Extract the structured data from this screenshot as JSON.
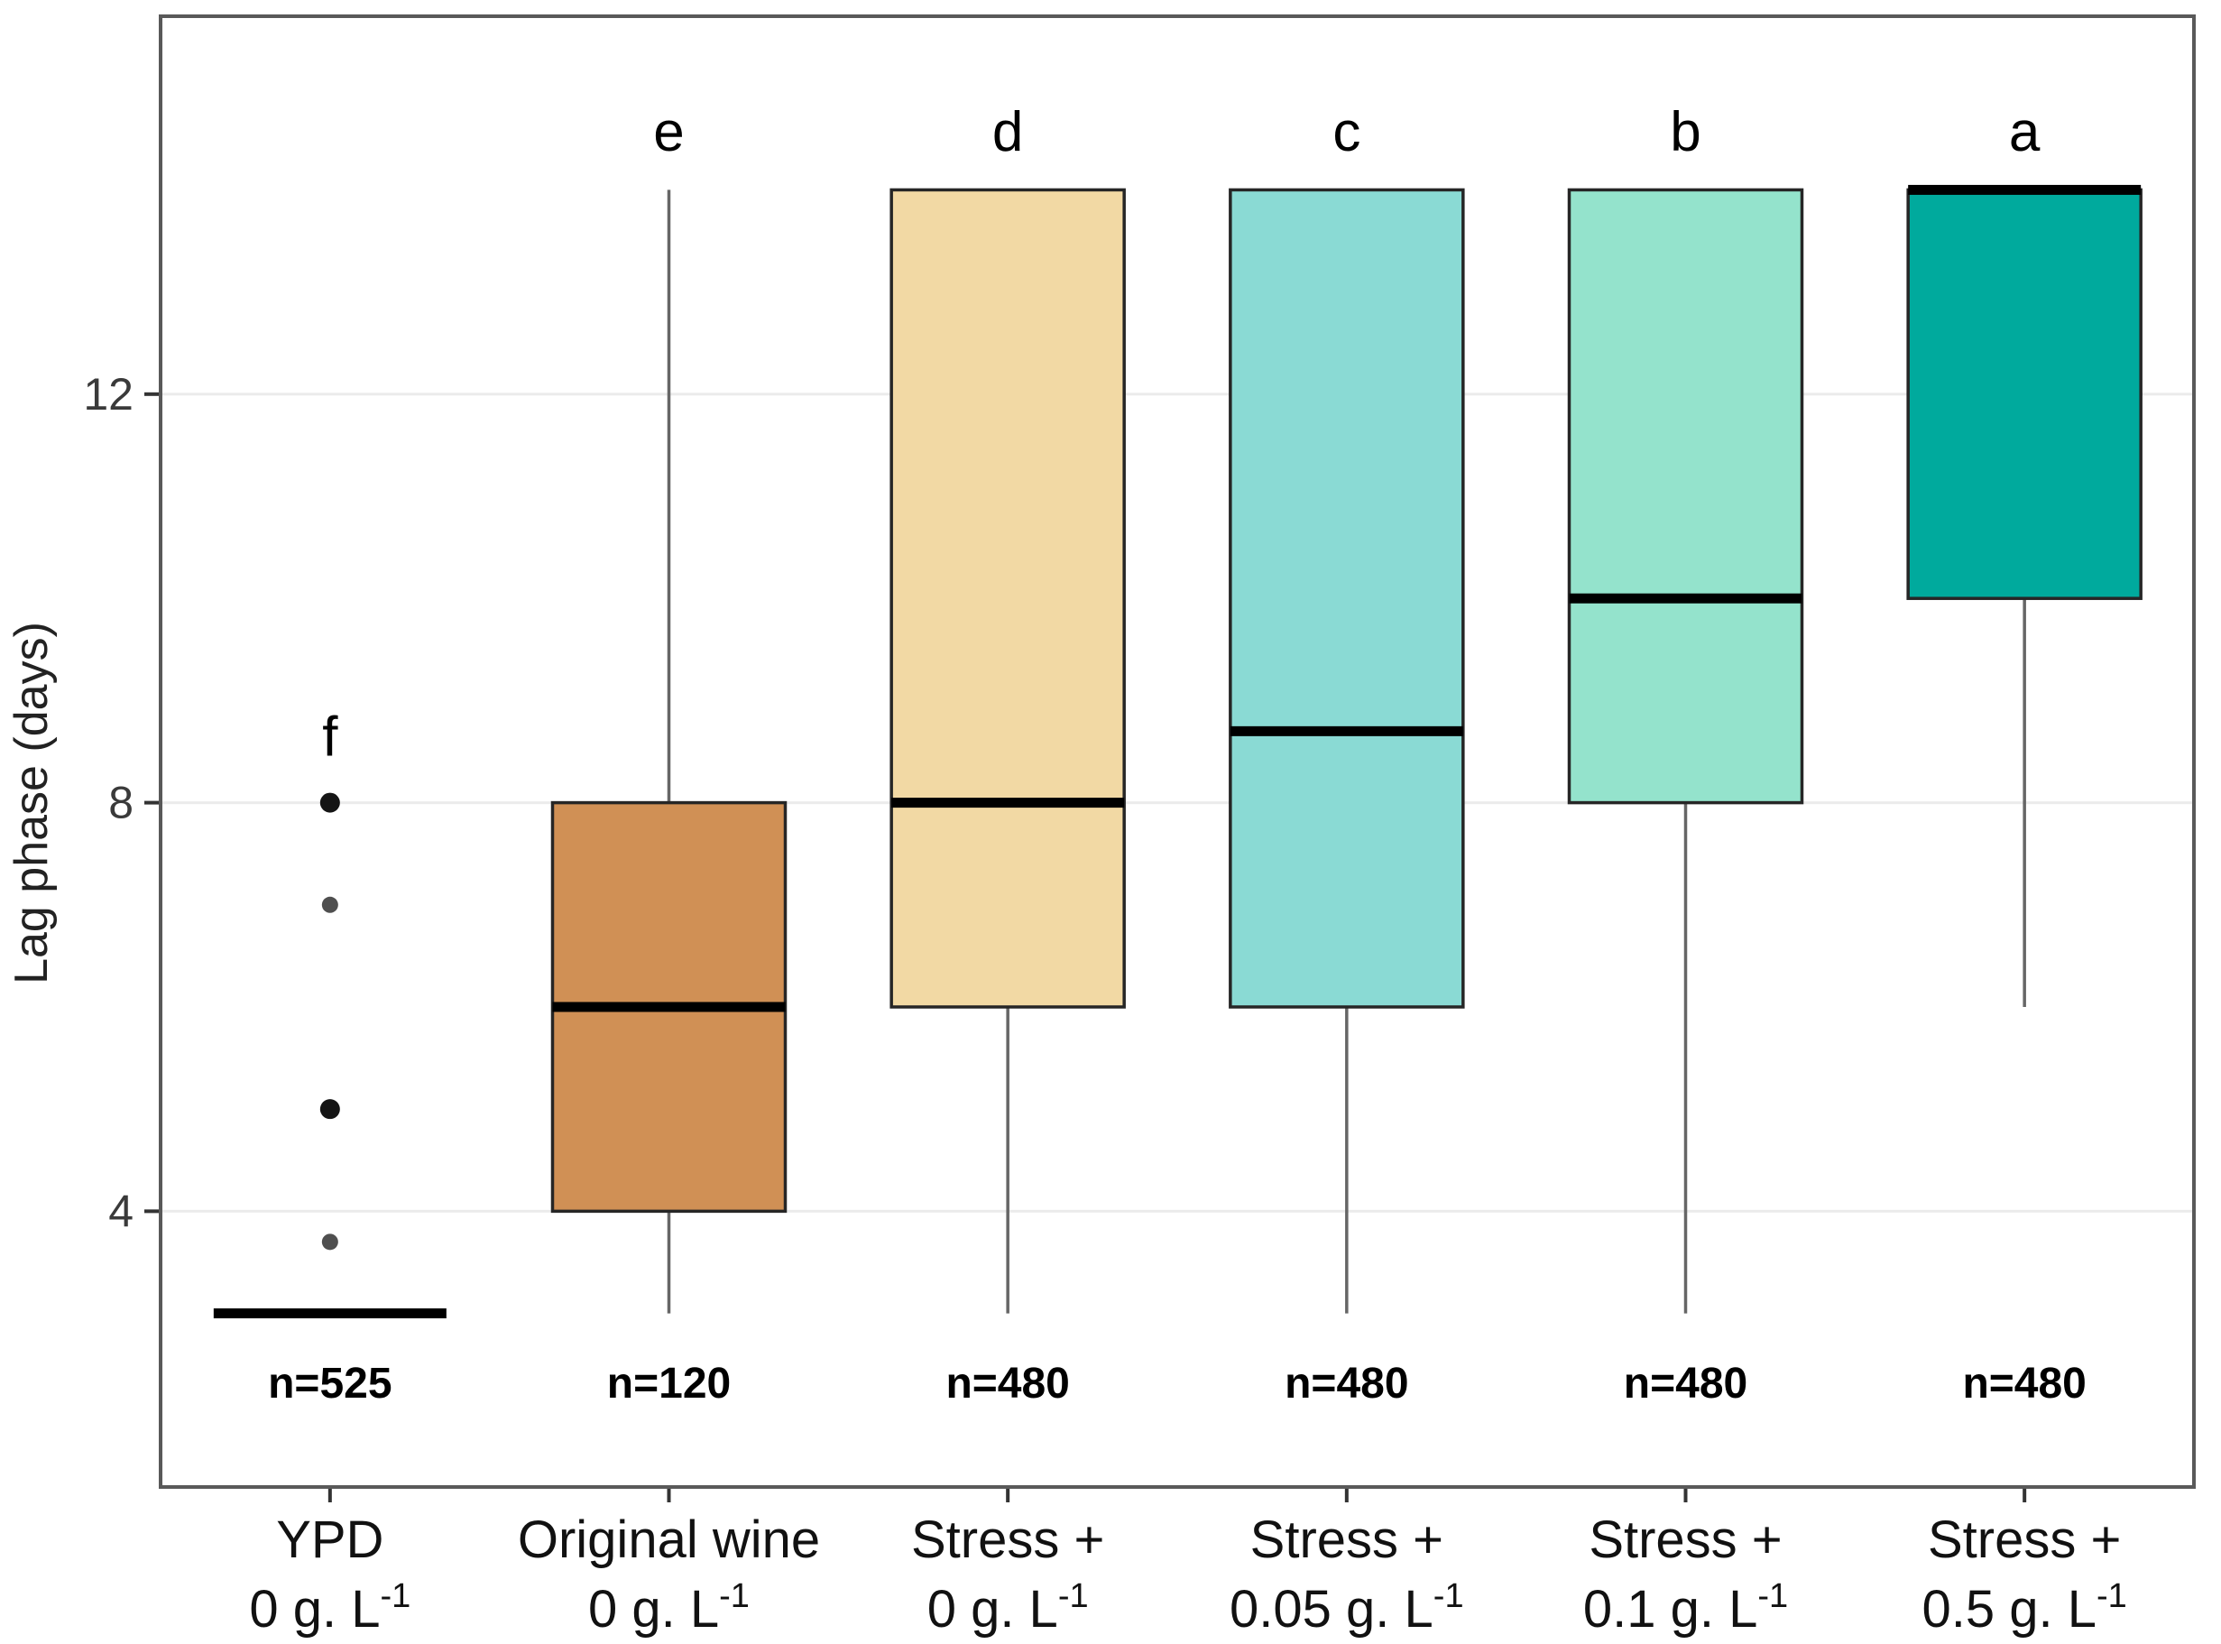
{
  "figure": {
    "background": "#ffffff"
  },
  "chart_data": {
    "type": "boxplot",
    "title": "",
    "xlabel": "",
    "ylabel": "Lag phase (days)",
    "y_axis": {
      "min": 1.3,
      "max": 15.7,
      "ticks": [
        4,
        8,
        12
      ],
      "grid": true
    },
    "legend": null,
    "colors": {
      "panel_border": "#595959",
      "gridline": "#ebebeb",
      "tick_mark": "#333333",
      "tick_label": "#3a3a3a",
      "box_border": "#262626",
      "median_line": "#000000",
      "whisker": "#666666",
      "outlier_strong": "#151515",
      "outlier_soft": "#4f4f4f",
      "text": "#111111"
    },
    "series": [
      {
        "label_line1": "YPD",
        "label_line2_base": "0 g. L",
        "label_line2_sup": "-1",
        "letter": "f",
        "n_label": "n=525",
        "fill": null,
        "stats": {
          "min": 3,
          "q1": 3,
          "median": 3,
          "q3": 3,
          "max": 3
        },
        "outliers": [
          {
            "value": 8,
            "strong": true
          },
          {
            "value": 7,
            "strong": false
          },
          {
            "value": 5,
            "strong": true
          },
          {
            "value": 3.7,
            "strong": false
          }
        ]
      },
      {
        "label_line1": "Original wine",
        "label_line2_base": "0 g. L",
        "label_line2_sup": "-1",
        "letter": "e",
        "n_label": "n=120",
        "fill": "#d09055",
        "stats": {
          "min": 3,
          "q1": 4,
          "median": 6,
          "q3": 8,
          "max": 14
        },
        "outliers": []
      },
      {
        "label_line1": "Stress +",
        "label_line2_base": "0 g. L",
        "label_line2_sup": "-1",
        "letter": "d",
        "n_label": "n=480",
        "fill": "#f2d9a4",
        "stats": {
          "min": 3,
          "q1": 6,
          "median": 8,
          "q3": 14,
          "max": 14
        },
        "outliers": []
      },
      {
        "label_line1": "Stress +",
        "label_line2_base": "0.05 g. L",
        "label_line2_sup": "-1",
        "letter": "c",
        "n_label": "n=480",
        "fill": "#8adad4",
        "stats": {
          "min": 3,
          "q1": 6,
          "median": 8.7,
          "q3": 14,
          "max": 14
        },
        "outliers": []
      },
      {
        "label_line1": "Stress +",
        "label_line2_base": "0.1 g. L",
        "label_line2_sup": "-1",
        "letter": "b",
        "n_label": "n=480",
        "fill": "#94e3cc",
        "stats": {
          "min": 3,
          "q1": 8,
          "median": 10,
          "q3": 14,
          "max": 14
        },
        "outliers": []
      },
      {
        "label_line1": "Stress +",
        "label_line2_base": "0.5 g. L",
        "label_line2_sup": "-1",
        "letter": "a",
        "n_label": "n=480",
        "fill": "#00aa9d",
        "stats": {
          "min": 6,
          "q1": 10,
          "median": 14,
          "q3": 14,
          "max": 14
        },
        "outliers": []
      }
    ]
  }
}
